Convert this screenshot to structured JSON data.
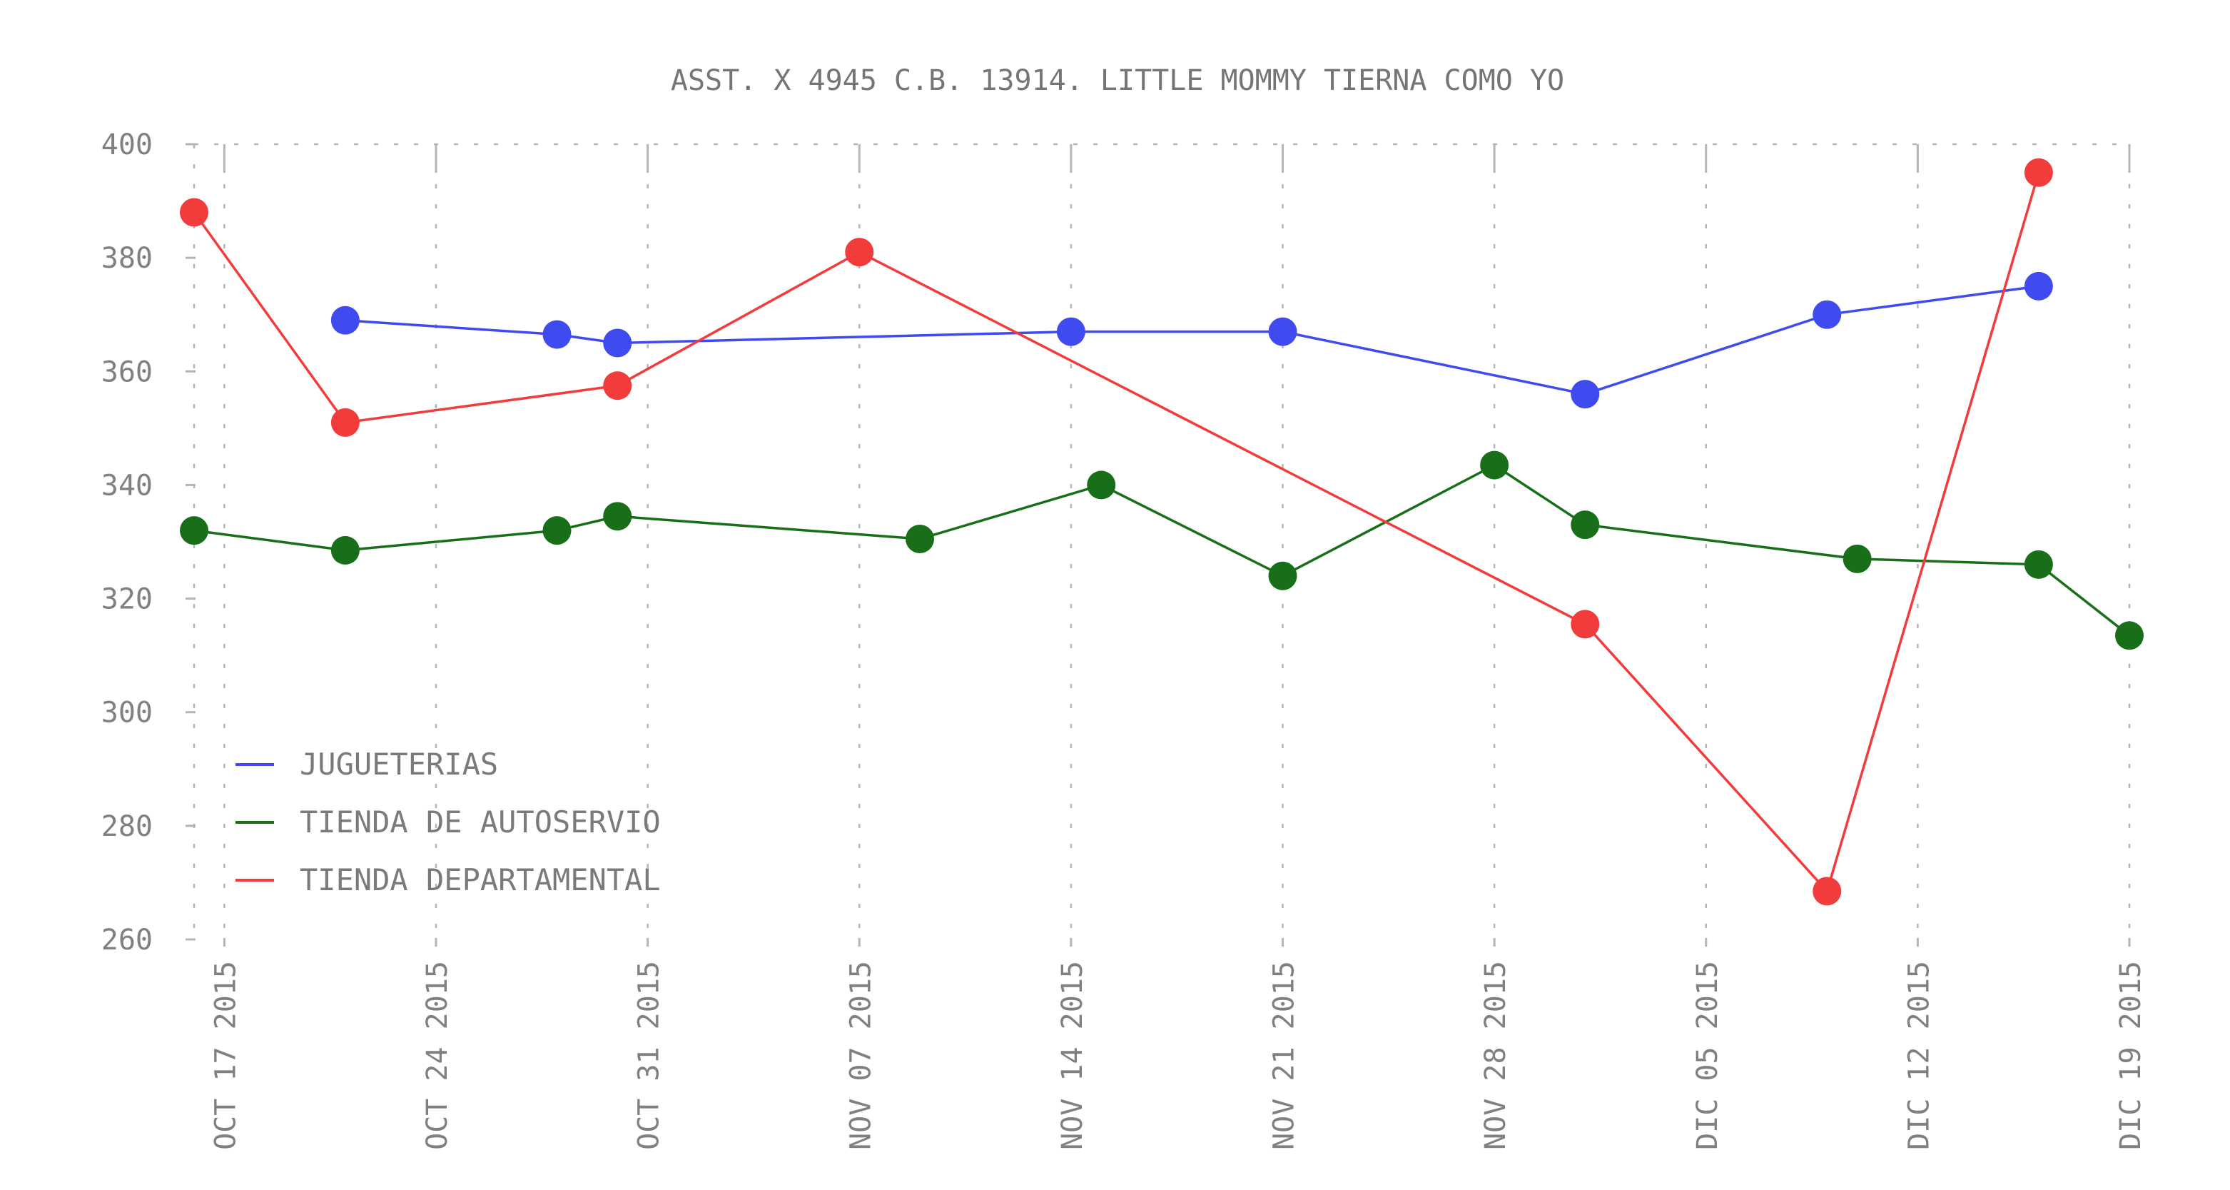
{
  "chart_data": {
    "type": "line",
    "title": "ASST. X 4945 C.B. 13914. LITTLE MOMMY TIERNA COMO YO",
    "xlabel": "",
    "ylabel": "",
    "ylim": [
      260,
      400
    ],
    "yticks": [
      260,
      280,
      300,
      320,
      340,
      360,
      380,
      400
    ],
    "xlim": [
      "2015-10-16",
      "2015-12-19"
    ],
    "xticks": [
      {
        "date": "2015-10-17",
        "label": "OCT 17 2015"
      },
      {
        "date": "2015-10-24",
        "label": "OCT 24 2015"
      },
      {
        "date": "2015-10-31",
        "label": "OCT 31 2015"
      },
      {
        "date": "2015-11-07",
        "label": "NOV 07 2015"
      },
      {
        "date": "2015-11-14",
        "label": "NOV 14 2015"
      },
      {
        "date": "2015-11-21",
        "label": "NOV 21 2015"
      },
      {
        "date": "2015-11-28",
        "label": "NOV 28 2015"
      },
      {
        "date": "2015-12-05",
        "label": "DIC 05 2015"
      },
      {
        "date": "2015-12-12",
        "label": "DIC 12 2015"
      },
      {
        "date": "2015-12-19",
        "label": "DIC 19 2015"
      }
    ],
    "grid": "dashed, x and y",
    "legend_position": "bottom-left",
    "series": [
      {
        "name": "JUGUETERIAS",
        "color": "#3f4bef",
        "points": [
          {
            "x": "2015-10-21",
            "y": 369
          },
          {
            "x": "2015-10-28",
            "y": 366.5
          },
          {
            "x": "2015-10-30",
            "y": 365
          },
          {
            "x": "2015-11-14",
            "y": 367
          },
          {
            "x": "2015-11-21",
            "y": 367
          },
          {
            "x": "2015-12-01",
            "y": 356
          },
          {
            "x": "2015-12-09",
            "y": 370
          },
          {
            "x": "2015-12-16",
            "y": 375
          }
        ]
      },
      {
        "name": "TIENDA DE AUTOSERVIO",
        "color": "#196f19",
        "points": [
          {
            "x": "2015-10-16",
            "y": 332
          },
          {
            "x": "2015-10-21",
            "y": 328.5
          },
          {
            "x": "2015-10-28",
            "y": 332
          },
          {
            "x": "2015-10-30",
            "y": 334.5
          },
          {
            "x": "2015-11-09",
            "y": 330.5
          },
          {
            "x": "2015-11-15",
            "y": 340
          },
          {
            "x": "2015-11-21",
            "y": 324
          },
          {
            "x": "2015-11-28",
            "y": 343.5
          },
          {
            "x": "2015-12-01",
            "y": 333
          },
          {
            "x": "2015-12-10",
            "y": 327
          },
          {
            "x": "2015-12-16",
            "y": 326
          },
          {
            "x": "2015-12-19",
            "y": 313.5
          }
        ]
      },
      {
        "name": "TIENDA DEPARTAMENTAL",
        "color": "#f23c3c",
        "points": [
          {
            "x": "2015-10-16",
            "y": 388
          },
          {
            "x": "2015-10-21",
            "y": 351
          },
          {
            "x": "2015-10-30",
            "y": 357.5
          },
          {
            "x": "2015-11-07",
            "y": 381
          },
          {
            "x": "2015-12-01",
            "y": 315.5
          },
          {
            "x": "2015-12-09",
            "y": 268.5
          },
          {
            "x": "2015-12-16",
            "y": 395
          }
        ]
      }
    ]
  }
}
